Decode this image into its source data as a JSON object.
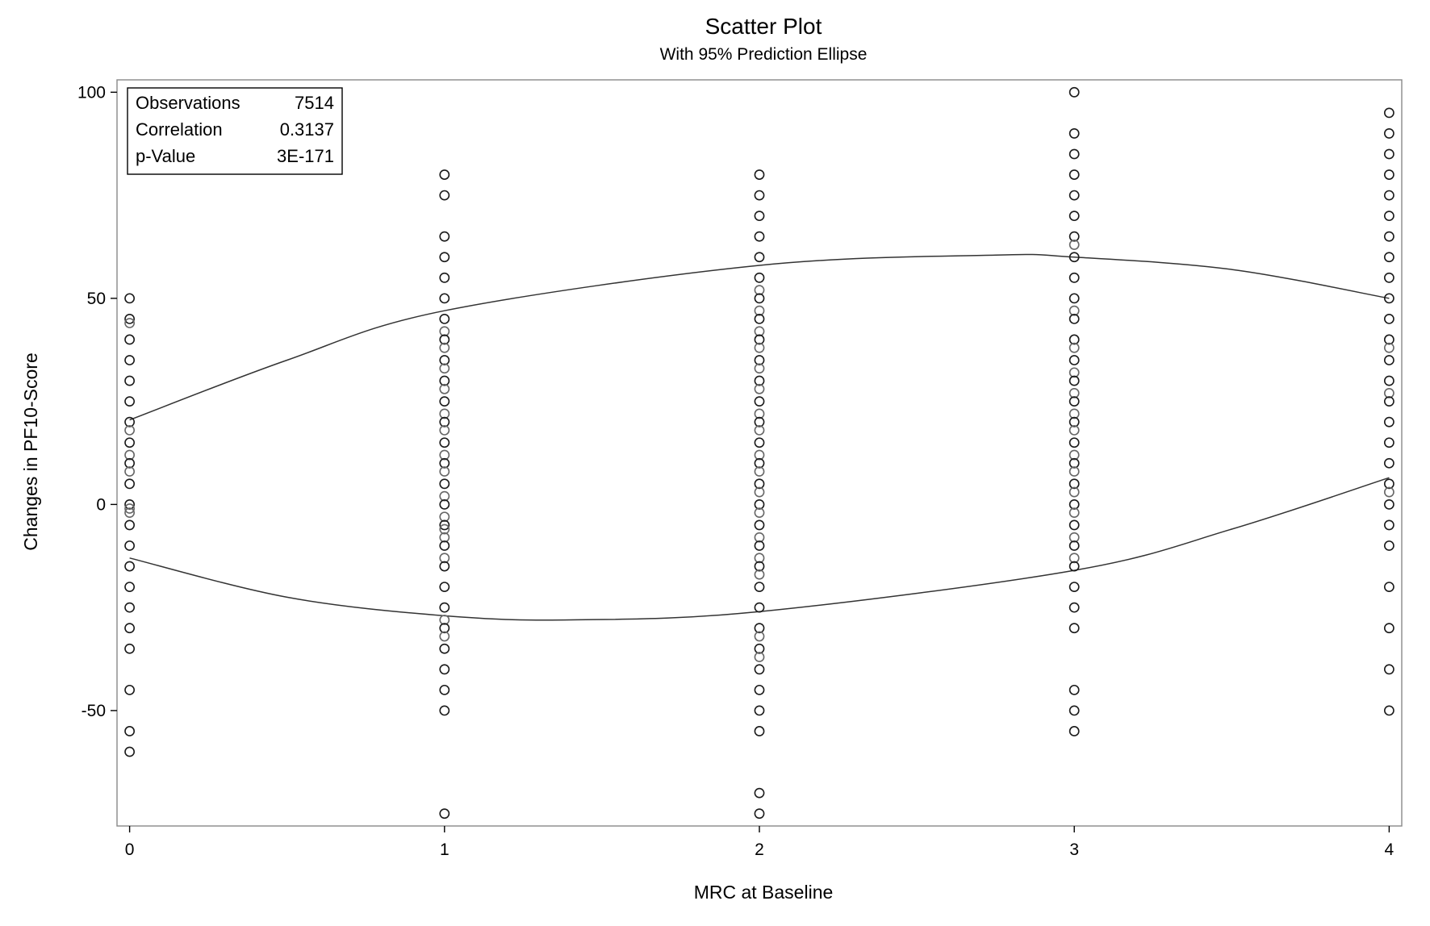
{
  "chart_data": {
    "type": "scatter",
    "title": "Scatter Plot",
    "subtitle": "With 95% Prediction Ellipse",
    "xlabel": "MRC at Baseline",
    "ylabel": "Changes in PF10-Score",
    "xlim": [
      -0.04,
      4.04
    ],
    "ylim": [
      -78,
      103
    ],
    "xticks": [
      0,
      1,
      2,
      3,
      4
    ],
    "yticks": [
      -50,
      0,
      50,
      100
    ],
    "grid": false,
    "stats_box": {
      "placement": "top-left",
      "rows": [
        {
          "label": "Observations",
          "value": "7514"
        },
        {
          "label": "Correlation",
          "value": "0.3137"
        },
        {
          "label": "p-Value",
          "value": "3E-171"
        }
      ]
    },
    "ellipse": {
      "label": "95% Prediction Ellipse",
      "upper": [
        [
          0,
          20.5
        ],
        [
          0.5,
          35
        ],
        [
          1,
          47
        ],
        [
          2,
          58
        ],
        [
          2.75,
          60.5
        ],
        [
          3,
          60
        ],
        [
          3.5,
          57
        ],
        [
          4,
          50
        ]
      ],
      "lower": [
        [
          0,
          -13
        ],
        [
          0.5,
          -22.5
        ],
        [
          1,
          -27
        ],
        [
          1.4,
          -28
        ],
        [
          2,
          -26
        ],
        [
          3,
          -16
        ],
        [
          3.5,
          -6
        ],
        [
          4,
          6.5
        ]
      ]
    },
    "series": [
      {
        "x": 0,
        "y": [
          50,
          45,
          44,
          40,
          35,
          30,
          25,
          20,
          18,
          15,
          12,
          10,
          8,
          5,
          0,
          -1,
          -2,
          -5,
          -10,
          -15,
          -20,
          -25,
          -30,
          -35,
          -45,
          -55,
          -60
        ]
      },
      {
        "x": 1,
        "y": [
          80,
          75,
          65,
          60,
          55,
          50,
          45,
          42,
          40,
          38,
          35,
          33,
          30,
          28,
          25,
          22,
          20,
          18,
          15,
          12,
          10,
          8,
          5,
          2,
          0,
          -3,
          -5,
          -6,
          -8,
          -10,
          -13,
          -15,
          -20,
          -25,
          -28,
          -30,
          -32,
          -35,
          -40,
          -45,
          -50,
          -75
        ]
      },
      {
        "x": 2,
        "y": [
          80,
          75,
          70,
          65,
          60,
          55,
          52,
          50,
          47,
          45,
          42,
          40,
          38,
          35,
          33,
          30,
          28,
          25,
          22,
          20,
          18,
          15,
          12,
          10,
          8,
          5,
          3,
          0,
          -2,
          -5,
          -8,
          -10,
          -13,
          -15,
          -17,
          -20,
          -25,
          -30,
          -32,
          -35,
          -37,
          -40,
          -45,
          -50,
          -55,
          -70,
          -75
        ]
      },
      {
        "x": 3,
        "y": [
          100,
          90,
          85,
          80,
          75,
          70,
          65,
          63,
          60,
          55,
          50,
          47,
          45,
          40,
          38,
          35,
          32,
          30,
          27,
          25,
          22,
          20,
          18,
          15,
          12,
          10,
          8,
          5,
          3,
          0,
          -2,
          -5,
          -8,
          -10,
          -13,
          -15,
          -20,
          -25,
          -30,
          -45,
          -50,
          -55
        ]
      },
      {
        "x": 4,
        "y": [
          95,
          90,
          85,
          80,
          75,
          70,
          65,
          60,
          55,
          50,
          45,
          40,
          38,
          35,
          30,
          27,
          25,
          20,
          15,
          10,
          5,
          3,
          0,
          -5,
          -10,
          -20,
          -30,
          -40,
          -50
        ]
      }
    ]
  }
}
